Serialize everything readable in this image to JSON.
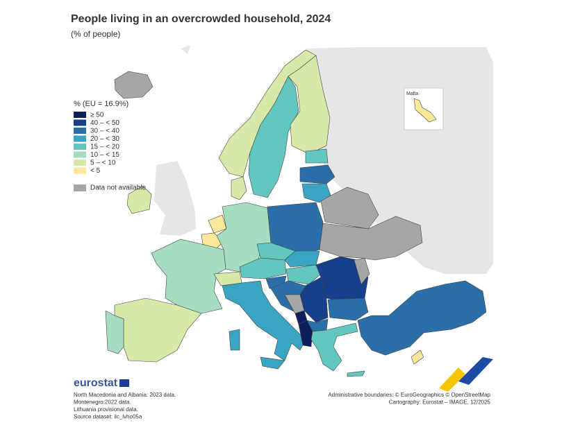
{
  "header": {
    "title": "People living in an overcrowded household, 2024",
    "subtitle": "(% of people)"
  },
  "legend": {
    "title": "% (EU = 16.9%)",
    "items": [
      {
        "label": "≥ 50",
        "color": "#0c1f5c"
      },
      {
        "label": "40 – < 50",
        "color": "#173f8c"
      },
      {
        "label": "30 – < 40",
        "color": "#2a6fa8"
      },
      {
        "label": "20 – < 30",
        "color": "#3aa5c3"
      },
      {
        "label": "15 – < 20",
        "color": "#62c7bf"
      },
      {
        "label": "10 – < 15",
        "color": "#a6dcbf"
      },
      {
        "label": "5 – < 10",
        "color": "#d6e9a8"
      },
      {
        "label": "< 5",
        "color": "#fde79a"
      }
    ],
    "na": {
      "label": "Data not available",
      "color": "#a6a6a6"
    }
  },
  "inset": {
    "label": "Malta"
  },
  "brand": "eurostat",
  "notes": [
    "North Macedonia and Albania: 2023 data.",
    "Montenegro:2022 data.",
    "Lithuania provisional data.",
    "Source dataset: ilc_lvho05a"
  ],
  "credits": [
    "Administrative boundaries: © EuroGeographics © OpenStreetMap",
    "Cartography: Eurostat – IMAGE, 12/2025"
  ]
}
